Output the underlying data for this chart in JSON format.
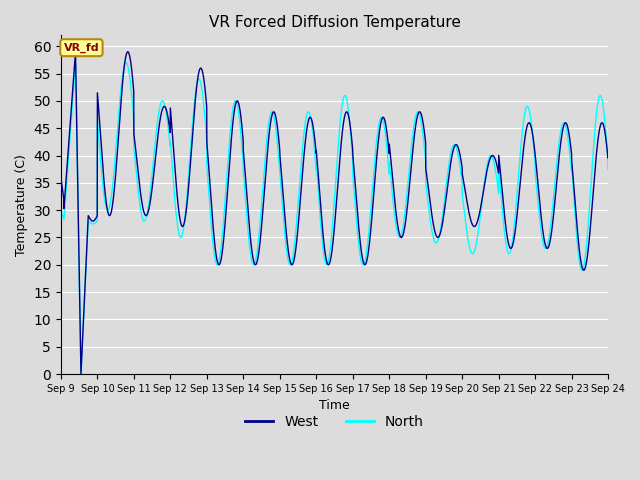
{
  "title": "VR Forced Diffusion Temperature",
  "xlabel": "Time",
  "ylabel": "Temperature (C)",
  "ylim": [
    0,
    62
  ],
  "yticks": [
    0,
    5,
    10,
    15,
    20,
    25,
    30,
    35,
    40,
    45,
    50,
    55,
    60
  ],
  "xtick_labels": [
    "Sep 9",
    "Sep 10",
    "Sep 11",
    "Sep 12",
    "Sep 13",
    "Sep 14",
    "Sep 15",
    "Sep 16",
    "Sep 17",
    "Sep 18",
    "Sep 19",
    "Sep 20",
    "Sep 21",
    "Sep 22",
    "Sep 23",
    "Sep 24"
  ],
  "west_color": "#00008B",
  "north_color": "#00FFFF",
  "bg_color": "#DCDCDC",
  "annotation_text": "VR_fd",
  "annotation_bg": "#FFFF99",
  "annotation_border": "#B8860B",
  "annotation_text_color": "#8B0000",
  "legend_west": "West",
  "legend_north": "North",
  "n_days": 15,
  "hours_per_day": 24,
  "west_peaks": [
    59,
    49,
    56,
    50,
    48,
    47,
    48,
    47,
    48,
    42,
    40,
    46,
    46,
    46,
    46
  ],
  "west_troughs": [
    29,
    29,
    27,
    20,
    20,
    20,
    20,
    20,
    25,
    25,
    27,
    23,
    23,
    19,
    24
  ],
  "north_peaks": [
    57,
    50,
    54,
    50,
    48,
    48,
    51,
    47,
    48,
    42,
    40,
    49,
    46,
    51,
    46
  ],
  "north_troughs": [
    30,
    28,
    25,
    20,
    20,
    20,
    20,
    20,
    25,
    24,
    22,
    22,
    23,
    19,
    24
  ],
  "figsize": [
    6.4,
    4.8
  ],
  "dpi": 100
}
